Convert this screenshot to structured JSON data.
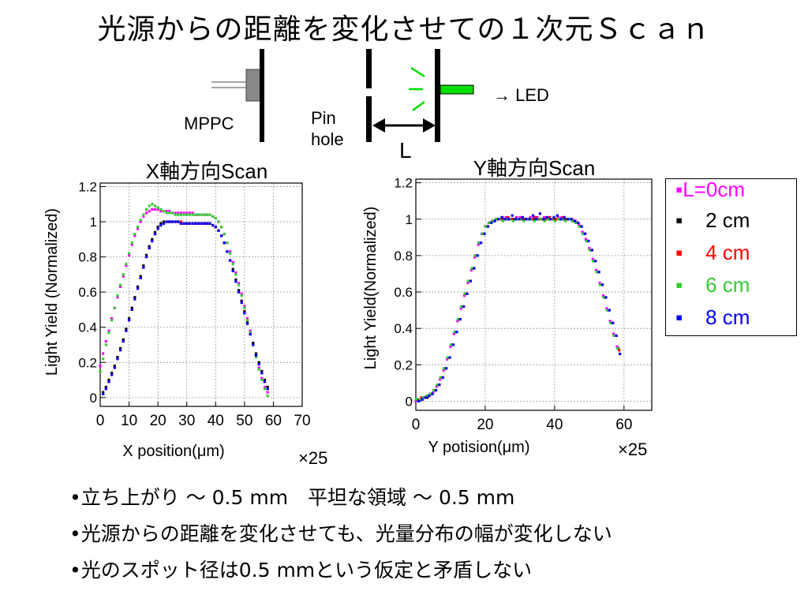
{
  "title": "光源からの距離を変化させての１次元Ｓｃａｎ",
  "diagram": {
    "mppc_label": "MPPC",
    "pinhole_label_line1": "Pin",
    "pinhole_label_line2": "hole",
    "led_label": "→ LED",
    "distance_label": "L",
    "led_color": "#00dd00",
    "mppc_color": "#888888"
  },
  "legend": {
    "items": [
      {
        "label": "L=0cm",
        "color": "#ff00ff"
      },
      {
        "label": "2 cm",
        "color": "#000000"
      },
      {
        "label": "4 cm",
        "color": "#ff0000"
      },
      {
        "label": "6 cm",
        "color": "#33cc33"
      },
      {
        "label": "8 cm",
        "color": "#0000ff"
      }
    ]
  },
  "chart_data": [
    {
      "type": "scatter",
      "title": "X軸方向Scan",
      "xlabel": "X position(μm)",
      "ylabel": "Light Yield (Normalized)",
      "xlim": [
        0,
        70
      ],
      "ylim": [
        -0.05,
        1.22
      ],
      "x_ticks": [
        0,
        10,
        20,
        30,
        40,
        50,
        60,
        70
      ],
      "y_ticks": [
        0,
        0.2,
        0.4,
        0.6,
        0.8,
        1,
        1.2
      ],
      "y_tick_labels": [
        "0",
        "0.2",
        "0.4",
        "0.6",
        "0.8",
        "1",
        "1.2"
      ],
      "scale_note": "×25",
      "grid": true,
      "series": [
        {
          "name": "L=0cm",
          "color": "#ff00ff",
          "x0": 0,
          "dx": 1,
          "values": [
            0.18,
            0.25,
            0.32,
            0.38,
            0.45,
            0.51,
            0.57,
            0.63,
            0.69,
            0.75,
            0.81,
            0.87,
            0.92,
            0.96,
            1.0,
            1.03,
            1.05,
            1.06,
            1.07,
            1.07,
            1.07,
            1.06,
            1.06,
            1.06,
            1.06,
            1.05,
            1.05,
            1.05,
            1.05,
            1.05,
            1.05,
            1.05,
            1.05,
            1.04,
            1.04,
            1.04,
            1.04,
            1.04,
            1.04,
            1.03,
            1.02,
            1.0,
            0.97,
            0.93,
            0.88,
            0.83,
            0.77,
            0.71,
            0.65,
            0.59,
            0.52,
            0.45,
            0.38,
            0.31,
            0.24,
            0.17,
            0.11,
            0.06,
            0.03
          ]
        },
        {
          "name": "2 cm",
          "color": "#000000",
          "x0": 1,
          "dx": 1,
          "values": [
            0.03,
            0.06,
            0.1,
            0.14,
            0.18,
            0.23,
            0.28,
            0.33,
            0.39,
            0.45,
            0.51,
            0.57,
            0.63,
            0.69,
            0.75,
            0.81,
            0.86,
            0.9,
            0.94,
            0.97,
            0.99,
            1.0,
            1.0,
            1.0,
            1.0,
            1.0,
            1.0,
            0.99,
            0.99,
            0.99,
            0.99,
            0.99,
            0.99,
            0.99,
            0.99,
            0.99,
            0.99,
            0.99,
            0.98,
            0.97,
            0.95,
            0.92,
            0.88,
            0.83,
            0.78,
            0.73,
            0.67,
            0.61,
            0.55,
            0.49,
            0.43,
            0.37,
            0.31,
            0.25,
            0.2,
            0.15,
            0.1,
            0.06
          ]
        },
        {
          "name": "4 cm",
          "color": "#ff0000",
          "x0": 1,
          "dx": 1,
          "values": [
            0.02,
            0.05,
            0.09,
            0.13,
            0.17,
            0.22,
            0.27,
            0.32,
            0.38,
            0.44,
            0.5,
            0.56,
            0.62,
            0.68,
            0.74,
            0.8,
            0.85,
            0.89,
            0.93,
            0.96,
            0.98,
            0.99,
            1.0,
            1.0,
            1.0,
            1.0,
            1.0,
            1.0,
            0.99,
            0.99,
            0.99,
            0.99,
            0.99,
            0.99,
            0.99,
            0.99,
            0.99,
            0.99,
            0.98,
            0.97,
            0.95,
            0.92,
            0.88,
            0.83,
            0.78,
            0.72,
            0.66,
            0.6,
            0.54,
            0.48,
            0.42,
            0.36,
            0.3,
            0.24,
            0.19,
            0.14,
            0.09,
            0.05
          ]
        },
        {
          "name": "6 cm",
          "color": "#33cc33",
          "x0": 0,
          "dx": 1,
          "values": [
            0.15,
            0.22,
            0.3,
            0.37,
            0.44,
            0.51,
            0.58,
            0.64,
            0.7,
            0.76,
            0.82,
            0.88,
            0.93,
            0.97,
            1.01,
            1.04,
            1.07,
            1.09,
            1.1,
            1.09,
            1.08,
            1.07,
            1.06,
            1.05,
            1.05,
            1.05,
            1.04,
            1.04,
            1.04,
            1.04,
            1.04,
            1.04,
            1.04,
            1.04,
            1.04,
            1.04,
            1.04,
            1.04,
            1.04,
            1.03,
            1.02,
            1.0,
            0.97,
            0.93,
            0.88,
            0.82,
            0.76,
            0.7,
            0.64,
            0.58,
            0.51,
            0.44,
            0.37,
            0.3,
            0.23,
            0.16,
            0.1,
            0.05,
            0.01
          ]
        },
        {
          "name": "8 cm",
          "color": "#0000ff",
          "x0": 1,
          "dx": 1,
          "values": [
            0.02,
            0.05,
            0.09,
            0.13,
            0.17,
            0.22,
            0.27,
            0.32,
            0.38,
            0.44,
            0.5,
            0.56,
            0.62,
            0.68,
            0.74,
            0.8,
            0.85,
            0.89,
            0.93,
            0.96,
            0.98,
            0.99,
            1.0,
            1.0,
            1.0,
            1.0,
            1.0,
            0.99,
            0.99,
            0.99,
            0.99,
            0.99,
            0.99,
            0.99,
            0.99,
            0.99,
            0.99,
            0.99,
            0.98,
            0.97,
            0.95,
            0.92,
            0.88,
            0.83,
            0.78,
            0.72,
            0.66,
            0.6,
            0.54,
            0.48,
            0.42,
            0.36,
            0.3,
            0.24,
            0.19,
            0.14,
            0.09,
            0.05
          ]
        }
      ]
    },
    {
      "type": "scatter",
      "title": "Y軸方向Scan",
      "xlabel": "Y potision(μm)",
      "ylabel": "Light Yield(Normalized)",
      "xlim": [
        0,
        68
      ],
      "ylim": [
        -0.05,
        1.22
      ],
      "x_ticks": [
        0,
        20,
        40,
        60
      ],
      "y_ticks": [
        0,
        0.2,
        0.4,
        0.6,
        0.8,
        1,
        1.2
      ],
      "y_tick_labels": [
        "0",
        "0.2",
        "0.4",
        "0.6",
        "0.8",
        "1",
        "1.2"
      ],
      "scale_note": "×25",
      "grid": true,
      "series": [
        {
          "name": "L=0cm",
          "color": "#ff00ff",
          "x0": 0,
          "dx": 1,
          "values": [
            0.0,
            0.01,
            0.01,
            0.02,
            0.03,
            0.05,
            0.08,
            0.12,
            0.17,
            0.23,
            0.3,
            0.37,
            0.44,
            0.51,
            0.58,
            0.65,
            0.72,
            0.79,
            0.86,
            0.92,
            0.96,
            0.98,
            0.99,
            1.0,
            1.0,
            1.01,
            1.01,
            1.0,
            1.0,
            1.01,
            1.01,
            1.0,
            1.0,
            1.01,
            1.01,
            1.01,
            1.0,
            1.01,
            1.01,
            1.0,
            1.0,
            1.01,
            1.01,
            1.0,
            1.0,
            1.0,
            0.99,
            0.97,
            0.93,
            0.89,
            0.84,
            0.78,
            0.72,
            0.65,
            0.58,
            0.51,
            0.44,
            0.37,
            0.3
          ]
        },
        {
          "name": "2 cm",
          "color": "#000000",
          "x0": 0.3,
          "dx": 1,
          "values": [
            0.01,
            0.01,
            0.02,
            0.02,
            0.04,
            0.06,
            0.09,
            0.13,
            0.18,
            0.24,
            0.31,
            0.38,
            0.45,
            0.52,
            0.59,
            0.66,
            0.73,
            0.8,
            0.87,
            0.92,
            0.96,
            0.98,
            0.99,
            1.0,
            1.0,
            1.0,
            1.0,
            1.0,
            1.0,
            1.0,
            1.0,
            1.0,
            1.0,
            1.0,
            1.0,
            1.0,
            1.0,
            1.0,
            1.0,
            1.0,
            1.0,
            1.0,
            1.0,
            1.0,
            1.0,
            0.99,
            0.98,
            0.96,
            0.92,
            0.88,
            0.83,
            0.77,
            0.71,
            0.64,
            0.57,
            0.5,
            0.43,
            0.36,
            0.29
          ]
        },
        {
          "name": "4 cm",
          "color": "#ff0000",
          "x0": 0.6,
          "dx": 1,
          "values": [
            0.01,
            0.02,
            0.02,
            0.03,
            0.04,
            0.06,
            0.09,
            0.13,
            0.18,
            0.24,
            0.31,
            0.38,
            0.45,
            0.52,
            0.59,
            0.66,
            0.73,
            0.8,
            0.87,
            0.92,
            0.96,
            0.98,
            0.99,
            1.0,
            1.0,
            1.0,
            1.01,
            1.0,
            1.0,
            1.0,
            1.01,
            1.0,
            1.0,
            1.0,
            1.01,
            1.0,
            1.0,
            1.0,
            1.01,
            1.0,
            1.0,
            1.0,
            1.01,
            1.0,
            1.0,
            0.99,
            0.98,
            0.96,
            0.92,
            0.88,
            0.83,
            0.77,
            0.71,
            0.64,
            0.57,
            0.5,
            0.43,
            0.36,
            0.28
          ]
        },
        {
          "name": "6 cm",
          "color": "#33cc33",
          "x0": 0.1,
          "dx": 1,
          "values": [
            0.01,
            0.01,
            0.02,
            0.03,
            0.04,
            0.06,
            0.09,
            0.13,
            0.18,
            0.24,
            0.31,
            0.38,
            0.45,
            0.52,
            0.59,
            0.66,
            0.73,
            0.8,
            0.87,
            0.92,
            0.96,
            0.98,
            0.99,
            1.0,
            1.0,
            0.99,
            1.0,
            1.0,
            0.99,
            1.0,
            1.0,
            0.99,
            1.0,
            1.0,
            0.99,
            1.0,
            1.0,
            0.99,
            1.0,
            1.0,
            0.99,
            1.0,
            1.0,
            0.99,
            1.0,
            0.99,
            0.98,
            0.96,
            0.92,
            0.88,
            0.83,
            0.77,
            0.71,
            0.64,
            0.57,
            0.5,
            0.43,
            0.36,
            0.29
          ]
        },
        {
          "name": "8 cm",
          "color": "#0000ff",
          "x0": 0.8,
          "dx": 1,
          "values": [
            0.0,
            0.01,
            0.02,
            0.03,
            0.04,
            0.06,
            0.09,
            0.13,
            0.18,
            0.24,
            0.31,
            0.38,
            0.45,
            0.52,
            0.59,
            0.66,
            0.73,
            0.8,
            0.87,
            0.92,
            0.96,
            0.98,
            0.99,
            1.0,
            1.01,
            1.0,
            1.0,
            1.02,
            1.0,
            1.0,
            1.01,
            1.0,
            1.0,
            1.02,
            1.0,
            1.03,
            1.0,
            1.01,
            1.0,
            1.01,
            1.02,
            1.0,
            1.01,
            1.0,
            1.0,
            0.99,
            0.98,
            0.96,
            0.92,
            0.88,
            0.83,
            0.77,
            0.71,
            0.64,
            0.57,
            0.5,
            0.43,
            0.36,
            0.26
          ]
        }
      ]
    }
  ],
  "bullets": [
    "•立ち上がり ～ 0.5 mm　平坦な領域 ～ 0.5 mm",
    "•光源からの距離を変化させても、光量分布の幅が変化しない",
    "•光のスポット径は0.5 mmという仮定と矛盾しない"
  ]
}
